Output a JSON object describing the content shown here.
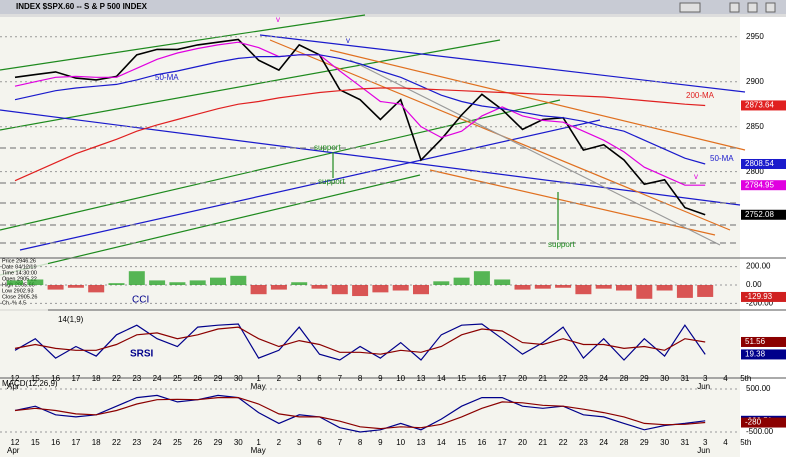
{
  "window": {
    "title": "INDEX $SPX.60 -- S & P 500 INDEX",
    "info": [
      "Price 2946.26",
      "Date 04/12/19",
      "Time 14:30:00",
      "Open 2905.22",
      "High 2905.66",
      "Low 2902.93",
      "Close 2905.26",
      "Ch. % 4.5"
    ]
  },
  "chart_data": [
    {
      "type": "line",
      "categories": [
        "12",
        "15",
        "16",
        "17",
        "18",
        "22",
        "23",
        "24",
        "25",
        "26",
        "29",
        "30",
        "1",
        "2",
        "3",
        "6",
        "7",
        "8",
        "9",
        "10",
        "13",
        "14",
        "15",
        "16",
        "17",
        "20",
        "21",
        "22",
        "23",
        "24",
        "28",
        "29",
        "30",
        "31",
        "3",
        "4",
        "5th"
      ],
      "months": [
        "Apr",
        "May",
        "Jun"
      ],
      "series": [
        {
          "color": "#000000",
          "values": [
            2905,
            2908,
            2911,
            2904,
            2902,
            2906,
            2930,
            2936,
            2936,
            2941,
            2944,
            2947,
            2924,
            2913,
            2941,
            2930,
            2891,
            2880,
            2858,
            2880,
            2813,
            2836,
            2863,
            2886,
            2869,
            2847,
            2858,
            2860,
            2824,
            2830,
            2813,
            2786,
            2791,
            2760,
            2752.08,
            null,
            null
          ]
        },
        {
          "color": "#e000e0",
          "values": [
            2895,
            2900,
            2905,
            2906,
            2905,
            2905,
            2915,
            2925,
            2932,
            2937,
            2941,
            2944,
            2938,
            2928,
            2930,
            2930,
            2912,
            2895,
            2878,
            2875,
            2850,
            2838,
            2845,
            2862,
            2872,
            2862,
            2857,
            2855,
            2845,
            2835,
            2822,
            2805,
            2795,
            2785,
            2784.95,
            null,
            null
          ]
        },
        {
          "name": "50-MA",
          "color": "#1a1acc",
          "values": [
            2880,
            2885,
            2890,
            2893,
            2895,
            2897,
            2902,
            2908,
            2912,
            2917,
            2922,
            2926,
            2928,
            2928,
            2930,
            2930,
            2926,
            2920,
            2912,
            2905,
            2895,
            2885,
            2878,
            2873,
            2870,
            2866,
            2862,
            2860,
            2856,
            2850,
            2845,
            2835,
            2825,
            2815,
            2808.54,
            null,
            null
          ]
        },
        {
          "name": "200-MA",
          "color": "#e02020",
          "values": [
            2790,
            2800,
            2810,
            2820,
            2828,
            2836,
            2845,
            2852,
            2858,
            2864,
            2870,
            2875,
            2878,
            2882,
            2885,
            2888,
            2890,
            2892,
            2893,
            2893,
            2892,
            2891,
            2890,
            2889,
            2888,
            2887,
            2886,
            2885,
            2884,
            2883,
            2881,
            2879,
            2877,
            2875,
            2873.64,
            null,
            null
          ]
        }
      ],
      "ylim": [
        2704,
        2972
      ],
      "yticks": [
        2800,
        2850,
        2900,
        2950
      ],
      "grid": true,
      "annotations": [
        "support",
        "support",
        "support",
        "v",
        "v",
        "v"
      ]
    },
    {
      "type": "histogram",
      "title": "CCI",
      "values": [
        50,
        60,
        -50,
        -30,
        -80,
        20,
        150,
        50,
        30,
        50,
        80,
        100,
        -100,
        -50,
        30,
        -40,
        -100,
        -120,
        -80,
        -60,
        -100,
        40,
        80,
        150,
        60,
        -50,
        -40,
        -30,
        -100,
        -40,
        -60,
        -150,
        -60,
        -140,
        -129.93,
        null,
        null
      ],
      "up_color": "#20a020",
      "down_color": "#d02020",
      "ylim": [
        -250,
        250
      ],
      "yticks": [
        {
          "value": 200,
          "label": "200.00"
        },
        {
          "value": 0,
          "label": "0.00"
        },
        {
          "value": -200,
          "label": "-200.00"
        }
      ]
    },
    {
      "type": "line",
      "title": "SRSI",
      "subtitle": "14(1,9)",
      "series": [
        {
          "color": "#00008b",
          "values": [
            30,
            60,
            10,
            40,
            15,
            70,
            95,
            60,
            40,
            90,
            95,
            98,
            10,
            30,
            90,
            20,
            5,
            40,
            10,
            50,
            5,
            70,
            95,
            98,
            60,
            20,
            50,
            90,
            10,
            60,
            5,
            60,
            15,
            95,
            19.38,
            null,
            null
          ]
        },
        {
          "color": "#8b0000",
          "values": [
            35,
            45,
            35,
            30,
            30,
            45,
            70,
            75,
            60,
            70,
            85,
            90,
            60,
            40,
            55,
            45,
            25,
            25,
            20,
            30,
            25,
            40,
            70,
            85,
            80,
            50,
            45,
            60,
            45,
            45,
            35,
            40,
            30,
            60,
            51.56,
            null,
            null
          ]
        }
      ],
      "ylim": [
        -26,
        129
      ]
    },
    {
      "type": "line",
      "title": "MACD(12,26,9)",
      "series": [
        {
          "color": "#00008b",
          "values": [
            0,
            100,
            -100,
            -150,
            -100,
            100,
            300,
            350,
            200,
            250,
            350,
            300,
            -50,
            -300,
            -100,
            -150,
            -400,
            -500,
            -450,
            -300,
            -450,
            -200,
            100,
            300,
            300,
            100,
            50,
            100,
            -100,
            -150,
            -300,
            -450,
            -350,
            -300,
            -239.51,
            null,
            null
          ]
        },
        {
          "color": "#8b0000",
          "values": [
            0,
            50,
            0,
            -80,
            -100,
            0,
            150,
            250,
            260,
            250,
            300,
            300,
            150,
            -80,
            -150,
            -150,
            -250,
            -380,
            -420,
            -380,
            -400,
            -320,
            -150,
            50,
            200,
            180,
            120,
            100,
            30,
            -50,
            -150,
            -300,
            -330,
            -320,
            -280,
            null,
            null
          ]
        }
      ],
      "ylim": [
        -686,
        709
      ],
      "yticks": [
        {
          "value": 500,
          "label": "500.00"
        },
        {
          "value": -500,
          "label": "-500.00"
        }
      ]
    }
  ]
}
